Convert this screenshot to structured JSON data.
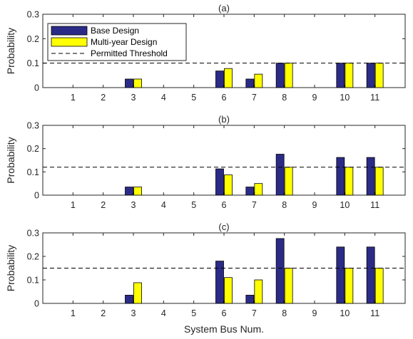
{
  "colors": {
    "base": "#2B2B87",
    "multi": "#FFFF00",
    "threshold": "#000000",
    "axis": "#262626"
  },
  "chart_data": [
    {
      "type": "bar",
      "title": "(a)",
      "xlabel": "",
      "ylabel": "Probability",
      "ylim": [
        0,
        0.3
      ],
      "yticks": [
        0,
        0.1,
        0.2,
        0.3
      ],
      "yticklabels": [
        "0",
        "0.1",
        "0.2",
        "0.3"
      ],
      "categories": [
        "1",
        "2",
        "3",
        "4",
        "5",
        "6",
        "7",
        "8",
        "9",
        "10",
        "11"
      ],
      "series": [
        {
          "name": "Base Design",
          "values": [
            0,
            0,
            0.035,
            0,
            0,
            0.068,
            0.035,
            0.1,
            0,
            0.1,
            0.1
          ]
        },
        {
          "name": "Multi-year Design",
          "values": [
            0,
            0,
            0.035,
            0,
            0,
            0.078,
            0.055,
            0.1,
            0,
            0.1,
            0.1
          ]
        }
      ],
      "threshold": {
        "name": "Permitted Threshold",
        "value": 0.1
      },
      "legend": "top-left",
      "grid": false
    },
    {
      "type": "bar",
      "title": "(b)",
      "xlabel": "",
      "ylabel": "Probability",
      "ylim": [
        0,
        0.3
      ],
      "yticks": [
        0,
        0.1,
        0.2,
        0.3
      ],
      "yticklabels": [
        "0",
        "0.1",
        "0.2",
        "0.3"
      ],
      "categories": [
        "1",
        "2",
        "3",
        "4",
        "5",
        "6",
        "7",
        "8",
        "9",
        "10",
        "11"
      ],
      "series": [
        {
          "name": "Base Design",
          "values": [
            0,
            0,
            0.035,
            0,
            0,
            0.113,
            0.035,
            0.176,
            0,
            0.162,
            0.162
          ]
        },
        {
          "name": "Multi-year Design",
          "values": [
            0,
            0,
            0.035,
            0,
            0,
            0.087,
            0.05,
            0.12,
            0,
            0.12,
            0.12
          ]
        }
      ],
      "threshold": {
        "name": "Permitted Threshold",
        "value": 0.12
      },
      "grid": false
    },
    {
      "type": "bar",
      "title": "(c)",
      "xlabel": "System Bus Num.",
      "ylabel": "Probability",
      "ylim": [
        0,
        0.3
      ],
      "yticks": [
        0,
        0.1,
        0.2,
        0.3
      ],
      "yticklabels": [
        "0",
        "0.1",
        "0.2",
        "0.3"
      ],
      "categories": [
        "1",
        "2",
        "3",
        "4",
        "5",
        "6",
        "7",
        "8",
        "9",
        "10",
        "11"
      ],
      "series": [
        {
          "name": "Base Design",
          "values": [
            0,
            0,
            0.035,
            0,
            0,
            0.18,
            0.035,
            0.276,
            0,
            0.24,
            0.24
          ]
        },
        {
          "name": "Multi-year Design",
          "values": [
            0,
            0,
            0.088,
            0,
            0,
            0.11,
            0.1,
            0.15,
            0,
            0.15,
            0.15
          ]
        }
      ],
      "threshold": {
        "name": "Permitted Threshold",
        "value": 0.15
      },
      "grid": false
    }
  ]
}
